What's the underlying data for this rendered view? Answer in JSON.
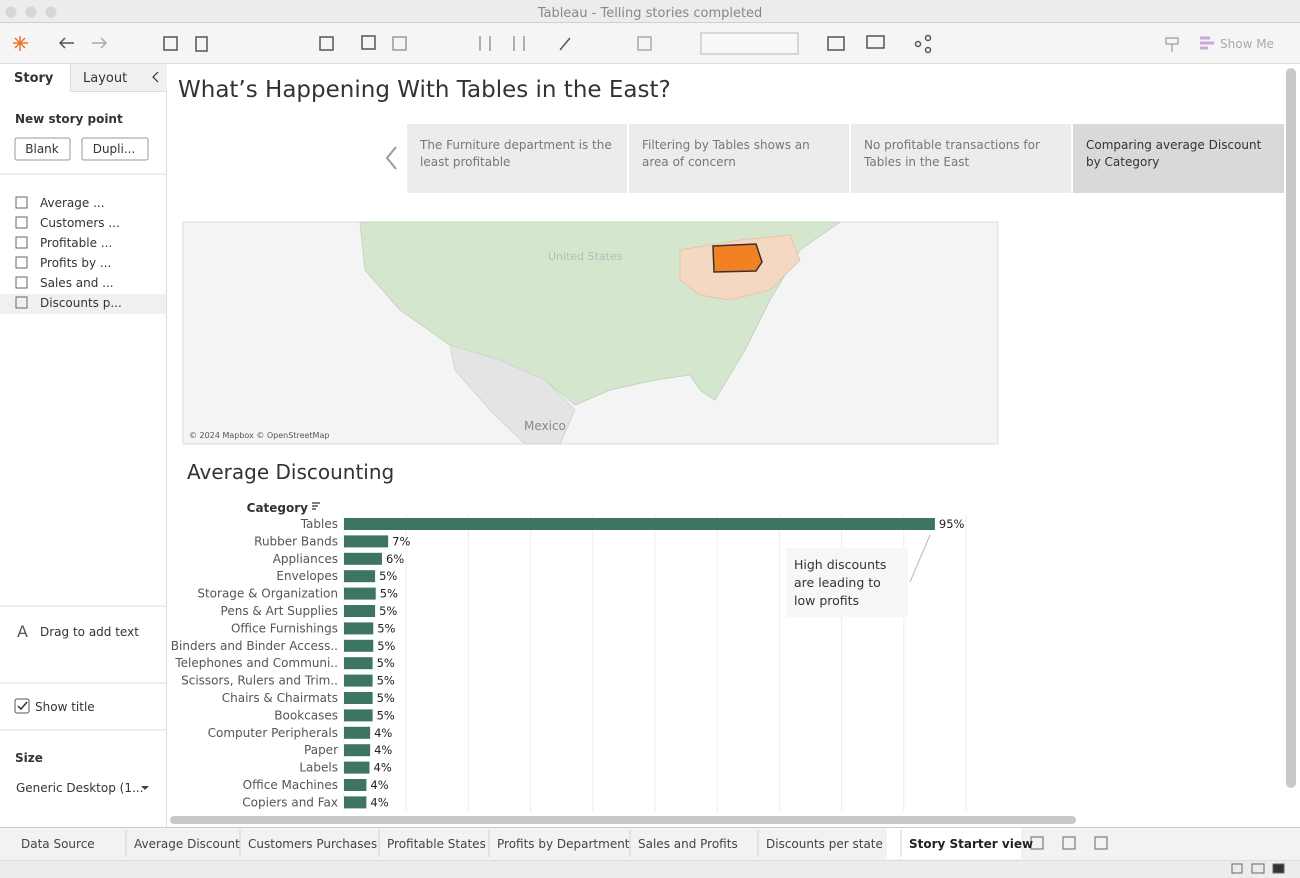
{
  "window": {
    "title": "Tableau - Telling stories completed"
  },
  "toolbar": {
    "show_me": "Show Me"
  },
  "sidebar": {
    "tabs": [
      "Story",
      "Layout"
    ],
    "new_story_point": "New story point",
    "buttons": [
      "Blank",
      "Dupli..."
    ],
    "sheets": [
      "Average ...",
      "Customers ...",
      "Profitable ...",
      "Profits by ...",
      "Sales and ...",
      "Discounts p..."
    ],
    "drag_text": "Drag to add text",
    "show_title": "Show title",
    "size_label": "Size",
    "size_value": "Generic Desktop (1..."
  },
  "story": {
    "title": "What’s Happening With Tables in the East?",
    "points": [
      "The Furniture department is the least profitable",
      "Filtering by Tables shows an area of concern",
      "No profitable transactions for Tables in the East",
      "Comparing average Discount by Category"
    ]
  },
  "map": {
    "labels": [
      "United States",
      "Mexico"
    ],
    "attribution": "© 2024 Mapbox © OpenStreetMap"
  },
  "chart_data": {
    "type": "bar",
    "title": "Average Discounting",
    "category_header": "Category",
    "categories": [
      "Tables",
      "Rubber Bands",
      "Appliances",
      "Envelopes",
      "Storage & Organization",
      "Pens & Art Supplies",
      "Office Furnishings",
      "Binders and Binder Access..",
      "Telephones and Communi..",
      "Scissors, Rulers and Trim..",
      "Chairs & Chairmats",
      "Bookcases",
      "Computer Peripherals",
      "Paper",
      "Labels",
      "Office Machines",
      "Copiers and Fax"
    ],
    "values": [
      95,
      7.1,
      6.1,
      5.0,
      5.1,
      5.0,
      4.7,
      4.7,
      4.6,
      4.6,
      4.6,
      4.6,
      4.2,
      4.2,
      4.1,
      3.6,
      3.6
    ],
    "value_labels": [
      "95%",
      "7%",
      "6%",
      "5%",
      "5%",
      "5%",
      "5%",
      "5%",
      "5%",
      "5%",
      "5%",
      "5%",
      "4%",
      "4%",
      "4%",
      "4%",
      "4%"
    ],
    "color": "#3e7562",
    "xlim": [
      0,
      100
    ],
    "xticks": [
      0,
      10,
      20,
      30,
      40,
      50,
      60,
      70,
      80,
      90,
      100
    ],
    "grid": true,
    "annotation": "High discounts are leading to low profits"
  },
  "tabs": [
    "Data Source",
    "Average Discount",
    "Customers Purchases",
    "Profitable States",
    "Profits by Department",
    "Sales and Profits",
    "Discounts per state",
    "Story Starter view"
  ]
}
